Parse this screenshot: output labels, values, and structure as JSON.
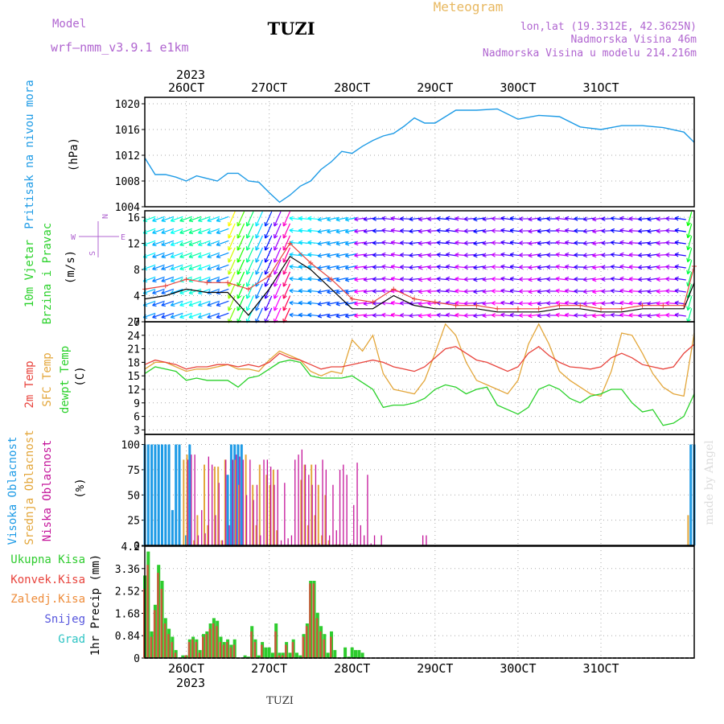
{
  "header": {
    "model_label": "Model",
    "model_name": "wrf—nmm_v3.9.1 e1km",
    "station": "TUZI",
    "title": "Meteogram",
    "coords": "lon,lat (19.3312E, 42.3625N)",
    "elevation": "Nadmorska Visina 46m",
    "model_elevation": "Nadmorska Visina u modelu 214.216m"
  },
  "footer": {
    "station": "TUZI",
    "watermark": "made by Angel"
  },
  "colors": {
    "pressure": "#1e9be6",
    "temp2m": "#e8433c",
    "sfc": "#e3a63a",
    "dewpt": "#2ad12a",
    "high_cloud": "#1e9be6",
    "mid_cloud": "#e3a63a",
    "low_cloud": "#c4149a",
    "total_precip": "#2ecc2e",
    "conv_precip": "#e8433c",
    "header_purple": "#b065d0",
    "header_orange": "#e8b860"
  },
  "chart_data": [
    {
      "type": "line",
      "title": "",
      "ylabel_lines": [
        "Pritisak na nivou mora",
        "(hPa)"
      ],
      "ylim": [
        1004,
        1021
      ],
      "yticks": [
        1004,
        1008,
        1012,
        1016,
        1020
      ],
      "x_hours": [
        0,
        3,
        6,
        9,
        12,
        15,
        18,
        21,
        24,
        27,
        30,
        33,
        36,
        39,
        42,
        45,
        48,
        51,
        54,
        57,
        60,
        63,
        66,
        69,
        72,
        75,
        78,
        81,
        84,
        87,
        90,
        96,
        102,
        108,
        114,
        120,
        126,
        132,
        138,
        144,
        150,
        156,
        159
      ],
      "series": [
        {
          "name": "pressure",
          "values": [
            1011.6,
            1009.0,
            1009.0,
            1008.6,
            1008.0,
            1008.8,
            1008.4,
            1008.0,
            1009.2,
            1009.2,
            1008.0,
            1007.8,
            1006.2,
            1004.7,
            1005.8,
            1007.2,
            1008.0,
            1009.8,
            1011.0,
            1012.6,
            1012.3,
            1013.4,
            1014.3,
            1015.0,
            1015.4,
            1016.5,
            1017.8,
            1017.0,
            1017.0,
            1018.0,
            1019.0,
            1019.0,
            1019.2,
            1017.6,
            1018.2,
            1018.0,
            1016.4,
            1016.0,
            1016.6,
            1016.6,
            1016.3,
            1015.6,
            1014.0
          ]
        }
      ]
    },
    {
      "type": "line",
      "title": "",
      "ylabel_lines": [
        "10m Vjetar",
        "Brzina i Pravac",
        "(m/s)"
      ],
      "ylim": [
        0,
        17
      ],
      "yticks": [
        0,
        4,
        8,
        12,
        16
      ],
      "compass": [
        "N",
        "S",
        "W",
        "E"
      ],
      "x_hours": [
        0,
        6,
        12,
        18,
        24,
        30,
        36,
        42,
        48,
        54,
        60,
        66,
        72,
        78,
        84,
        90,
        96,
        102,
        108,
        114,
        120,
        126,
        132,
        138,
        144,
        150,
        156,
        159
      ],
      "series": [
        {
          "name": "speed",
          "values": [
            3.5,
            4.0,
            5.0,
            4.5,
            4.5,
            1.0,
            5.0,
            10.0,
            8.0,
            5.0,
            2.0,
            2.0,
            4.0,
            2.5,
            2.0,
            2.0,
            2.0,
            1.5,
            1.5,
            1.5,
            2.0,
            2.0,
            1.5,
            1.5,
            2.0,
            2.0,
            2.0,
            6.0
          ]
        },
        {
          "name": "gust",
          "values": [
            5.0,
            5.5,
            6.5,
            6.0,
            6.0,
            5.0,
            7.0,
            12.0,
            9.0,
            6.5,
            3.5,
            3.0,
            5.0,
            3.5,
            3.0,
            2.5,
            2.5,
            2.0,
            2.0,
            2.0,
            2.5,
            2.5,
            2.0,
            2.0,
            2.5,
            2.5,
            2.5,
            8.5
          ]
        }
      ]
    },
    {
      "type": "line",
      "title": "",
      "ylabel_lines": [
        "2m Temp",
        "SFC Temp",
        "dewpt Temp",
        "(C)"
      ],
      "ylim": [
        2,
        27
      ],
      "yticks": [
        3,
        6,
        9,
        12,
        15,
        18,
        21,
        24,
        27
      ],
      "x_hours": [
        0,
        3,
        6,
        9,
        12,
        15,
        18,
        21,
        24,
        27,
        30,
        33,
        36,
        39,
        42,
        45,
        48,
        51,
        54,
        57,
        60,
        63,
        66,
        69,
        72,
        75,
        78,
        81,
        84,
        87,
        90,
        93,
        96,
        99,
        102,
        105,
        108,
        111,
        114,
        117,
        120,
        123,
        126,
        129,
        132,
        135,
        138,
        141,
        144,
        147,
        150,
        153,
        156,
        159
      ],
      "series": [
        {
          "name": "2m",
          "values": [
            17.5,
            18.5,
            18.0,
            17.5,
            16.5,
            17.0,
            17.0,
            17.5,
            17.5,
            17.0,
            17.5,
            17.0,
            18.0,
            20.0,
            19.0,
            18.5,
            17.5,
            16.5,
            17.0,
            17.0,
            17.5,
            18.0,
            18.5,
            18.0,
            17.0,
            16.5,
            16.0,
            17.0,
            19.0,
            21.0,
            21.5,
            20.0,
            18.5,
            18.0,
            17.0,
            16.0,
            17.0,
            20.0,
            21.5,
            19.5,
            18.0,
            17.0,
            16.8,
            16.5,
            17.0,
            19.0,
            20.0,
            19.0,
            17.5,
            17.0,
            16.5,
            17.0,
            20.0,
            22.0
          ]
        },
        {
          "name": "SFC",
          "values": [
            16.5,
            18.0,
            18.0,
            17.0,
            16.0,
            16.5,
            16.5,
            17.0,
            17.5,
            16.5,
            16.5,
            16.0,
            18.5,
            20.5,
            19.5,
            18.5,
            16.0,
            15.0,
            16.0,
            15.5,
            23.0,
            20.5,
            24.0,
            15.5,
            12.0,
            11.5,
            11.0,
            14.0,
            20.0,
            26.5,
            24.0,
            18.0,
            14.0,
            13.0,
            12.0,
            11.0,
            14.0,
            22.0,
            26.5,
            22.0,
            16.0,
            14.0,
            12.5,
            11.0,
            10.5,
            16.0,
            24.5,
            24.0,
            20.0,
            15.5,
            12.5,
            11.0,
            10.5,
            24.5
          ]
        },
        {
          "name": "dewpt",
          "values": [
            15.5,
            17.0,
            16.5,
            16.0,
            14.0,
            14.5,
            14.0,
            14.0,
            14.0,
            12.5,
            14.5,
            15.0,
            16.5,
            18.0,
            18.5,
            18.0,
            15.0,
            14.5,
            14.5,
            14.5,
            15.0,
            13.5,
            12.0,
            8.0,
            8.5,
            8.5,
            9.0,
            10.0,
            12.0,
            13.0,
            12.5,
            11.0,
            12.0,
            12.5,
            8.5,
            7.5,
            6.5,
            8.0,
            12.0,
            13.0,
            12.0,
            10.0,
            9.0,
            10.5,
            11.0,
            12.0,
            12.0,
            9.0,
            7.0,
            7.5,
            4.0,
            4.5,
            6.0,
            11.0
          ]
        }
      ]
    },
    {
      "type": "bar",
      "title": "",
      "ylabel_lines": [
        "Visoka Oblacnost",
        "Srednja Oblacnost",
        "Niska Oblacnost",
        "(%)"
      ],
      "ylim": [
        0,
        100
      ],
      "yticks": [
        0,
        25,
        50,
        75,
        100
      ],
      "series": [
        {
          "name": "high",
          "x_hours": [
            0,
            1,
            2,
            3,
            4,
            5,
            6,
            7,
            8,
            9,
            10,
            12,
            13,
            24,
            25,
            26,
            27,
            28,
            158,
            159
          ],
          "values": [
            100,
            100,
            100,
            100,
            100,
            100,
            100,
            100,
            35,
            100,
            100,
            10,
            100,
            70,
            100,
            100,
            100,
            100,
            100,
            100
          ]
        },
        {
          "name": "mid",
          "x_hours": [
            11,
            12,
            14,
            15,
            17,
            18,
            20,
            21,
            22,
            23,
            26,
            27,
            29,
            31,
            32,
            33,
            35,
            36,
            37,
            38,
            45,
            46,
            47,
            48,
            49,
            50,
            51,
            52,
            53,
            55,
            56,
            157
          ],
          "values": [
            85,
            90,
            5,
            30,
            80,
            20,
            78,
            78,
            5,
            85,
            85,
            60,
            90,
            60,
            20,
            80,
            70,
            60,
            75,
            15,
            65,
            80,
            20,
            80,
            30,
            60,
            10,
            50,
            5,
            1,
            1,
            30
          ]
        },
        {
          "name": "low",
          "x_hours": [
            12,
            13,
            14,
            15,
            16,
            17,
            18,
            19,
            20,
            21,
            22,
            23,
            24,
            25,
            26,
            27,
            28,
            29,
            30,
            31,
            32,
            33,
            34,
            35,
            36,
            37,
            38,
            39,
            40,
            41,
            42,
            43,
            44,
            45,
            46,
            47,
            48,
            49,
            50,
            51,
            52,
            53,
            54,
            55,
            56,
            57,
            58,
            59,
            60,
            61,
            62,
            63,
            64,
            65,
            66,
            68,
            80,
            81
          ],
          "values": [
            85,
            90,
            90,
            10,
            35,
            12,
            88,
            80,
            30,
            62,
            5,
            85,
            20,
            85,
            90,
            88,
            85,
            50,
            85,
            45,
            60,
            10,
            85,
            85,
            78,
            60,
            75,
            5,
            62,
            7,
            10,
            85,
            90,
            95,
            80,
            70,
            60,
            80,
            2,
            85,
            75,
            10,
            60,
            15,
            75,
            80,
            70,
            2,
            40,
            82,
            20,
            10,
            70,
            2,
            10,
            10,
            10,
            10
          ]
        }
      ]
    },
    {
      "type": "bar",
      "title": "",
      "ylabel_lines": [
        "1hr Precip (mm)"
      ],
      "legend": [
        "Ukupna Kisa",
        "Konvek.Kisa",
        "Zaledj.Kisa",
        "Snijeg",
        "Grad"
      ],
      "ylim": [
        0,
        4.2
      ],
      "yticks": [
        0,
        0.84,
        1.68,
        2.52,
        3.36,
        4.2
      ],
      "series": [
        {
          "name": "Ukupna Kisa",
          "x_hours": [
            0,
            1,
            2,
            3,
            4,
            5,
            6,
            7,
            8,
            9,
            10,
            11,
            12,
            13,
            14,
            15,
            16,
            17,
            18,
            19,
            20,
            21,
            22,
            23,
            24,
            25,
            26,
            27,
            28,
            29,
            30,
            31,
            32,
            33,
            34,
            35,
            36,
            37,
            38,
            39,
            40,
            41,
            42,
            43,
            44,
            45,
            46,
            47,
            48,
            49,
            50,
            51,
            52,
            53,
            54,
            55,
            56,
            57,
            58,
            59,
            60,
            61,
            62,
            63
          ],
          "values": [
            3.1,
            4.0,
            1.0,
            2.0,
            3.5,
            2.9,
            1.5,
            1.1,
            0.8,
            0.3,
            0.0,
            0.1,
            0.1,
            0.7,
            0.8,
            0.7,
            0.3,
            0.9,
            1.0,
            1.3,
            1.5,
            1.4,
            0.8,
            0.6,
            0.7,
            0.5,
            0.7,
            0.0,
            0.0,
            0.1,
            0.05,
            1.2,
            0.7,
            0.1,
            0.6,
            0.4,
            0.4,
            0.2,
            1.3,
            0.2,
            0.2,
            0.6,
            0.2,
            0.7,
            0.2,
            0.1,
            0.9,
            1.3,
            2.9,
            2.9,
            1.7,
            1.2,
            0.9,
            0.2,
            1.0,
            0.3,
            0.0,
            0.0,
            0.4,
            0.05,
            0.4,
            0.3,
            0.3,
            0.2
          ]
        },
        {
          "name": "Konvek.Kisa",
          "x_hours": [
            0,
            1,
            2,
            3,
            4,
            5,
            6,
            7,
            8,
            9,
            12,
            13,
            14,
            15,
            16,
            17,
            18,
            19,
            20,
            21,
            22,
            23,
            24,
            25,
            26,
            31,
            32,
            34,
            38,
            39,
            40,
            41,
            43,
            46,
            47,
            48,
            49,
            50,
            51,
            52,
            54
          ],
          "values": [
            2.6,
            3.5,
            0.8,
            1.8,
            3.2,
            2.6,
            1.3,
            0.9,
            0.6,
            0.2,
            0.1,
            0.6,
            0.7,
            0.6,
            0.2,
            0.8,
            0.9,
            1.1,
            1.3,
            1.2,
            0.6,
            0.5,
            0.6,
            0.4,
            0.5,
            1.0,
            0.6,
            0.5,
            1.0,
            0.1,
            0.1,
            0.5,
            0.6,
            0.8,
            1.2,
            2.8,
            2.8,
            1.5,
            1.0,
            0.7,
            0.8
          ]
        }
      ]
    }
  ],
  "axes": {
    "x_day_labels": [
      "26OCT",
      "27OCT",
      "28OCT",
      "29OCT",
      "30OCT",
      "31OCT"
    ],
    "year_label": "2023"
  }
}
